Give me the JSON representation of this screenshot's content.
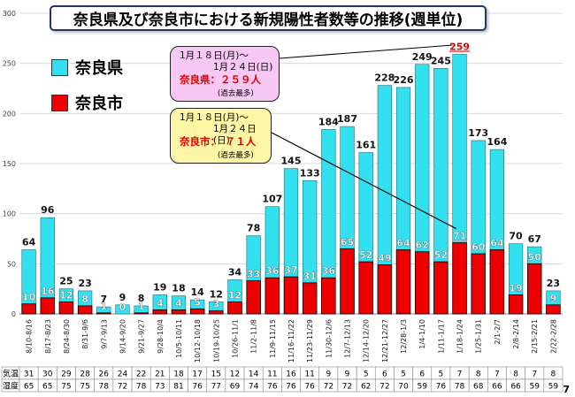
{
  "title": "奈良県及び奈良市における新規陽性者数等の推移(週単位)",
  "legend": [
    {
      "label": "奈良県",
      "color": "#33e0f0"
    },
    {
      "label": "奈良市",
      "color": "#ee0000"
    }
  ],
  "callouts": [
    {
      "line1": "1月１８日(月)～",
      "line2": "1月２４日(日)",
      "highlight": "奈良県：２５９人",
      "note": "(過去最多)",
      "bg": "#f6c8f3"
    },
    {
      "line1": "1月１８日(月)～",
      "line2": "1月２４日(日)",
      "highlight": "奈良市：　７１人",
      "note": "(過去最多)",
      "bg": "#fdf6a6"
    }
  ],
  "chart_data": {
    "type": "bar",
    "categories": [
      "8/10-8/16",
      "8/17-8/23",
      "8/24-8/30",
      "8/31-9/6",
      "9/7-9/13",
      "9/14-9/20",
      "9/21-9/27",
      "9/28-10/4",
      "10/5-10/11",
      "10/12-10/18",
      "10/19-10/25",
      "10/26-11/1",
      "11/2-11/8",
      "11/9-11/15",
      "11/16-11/22",
      "11/23-11/29",
      "11/30-12/6",
      "12/7-12/13",
      "12/14-12/20",
      "12/21-12/27",
      "12/28-1/3",
      "1/4-1/10",
      "1/11-1/17",
      "1/18-1/24",
      "1/25-1/31",
      "2/1-2/7",
      "2/8-2/14",
      "2/15-2/21",
      "2/22-2/28"
    ],
    "series": [
      {
        "name": "奈良県",
        "color": "#33e0f0",
        "values": [
          64,
          96,
          25,
          23,
          7,
          9,
          8,
          19,
          18,
          14,
          12,
          34,
          78,
          107,
          145,
          133,
          184,
          187,
          161,
          228,
          226,
          249,
          245,
          259,
          173,
          164,
          70,
          67,
          23
        ]
      },
      {
        "name": "奈良市",
        "color": "#ee0000",
        "values": [
          10,
          16,
          12,
          8,
          1,
          0,
          1,
          4,
          4,
          5,
          3,
          12,
          33,
          36,
          37,
          31,
          36,
          65,
          52,
          49,
          64,
          62,
          52,
          71,
          60,
          64,
          19,
          50,
          9
        ]
      }
    ],
    "highlight_label": {
      "index": 23,
      "text": "259",
      "color": "#e00000"
    },
    "underline_label": {
      "index": 23,
      "series": 1,
      "text": "71"
    },
    "ylim": [
      0,
      300
    ],
    "yticks": [
      0,
      50,
      100,
      150,
      200,
      250,
      300
    ],
    "grid": true,
    "legend_position": "top-left"
  },
  "weather_table": {
    "rows": [
      {
        "label": "気温",
        "values": [
          "31",
          "30",
          "29",
          "28",
          "26",
          "24",
          "22",
          "21",
          "18",
          "17",
          "15",
          "12",
          "14",
          "11",
          "16",
          "11",
          "9",
          "9",
          "5",
          "6",
          "5",
          "6",
          "5",
          "7",
          "8",
          "7",
          "8",
          "7",
          "8"
        ]
      },
      {
        "label": "湿度",
        "values": [
          "65",
          "65",
          "75",
          "75",
          "78",
          "72",
          "78",
          "73",
          "81",
          "76",
          "77",
          "69",
          "74",
          "76",
          "76",
          "76",
          "72",
          "72",
          "62",
          "72",
          "70",
          "59",
          "76",
          "78",
          "68",
          "66",
          "66",
          "59",
          "59"
        ]
      }
    ]
  },
  "page_number": "7"
}
